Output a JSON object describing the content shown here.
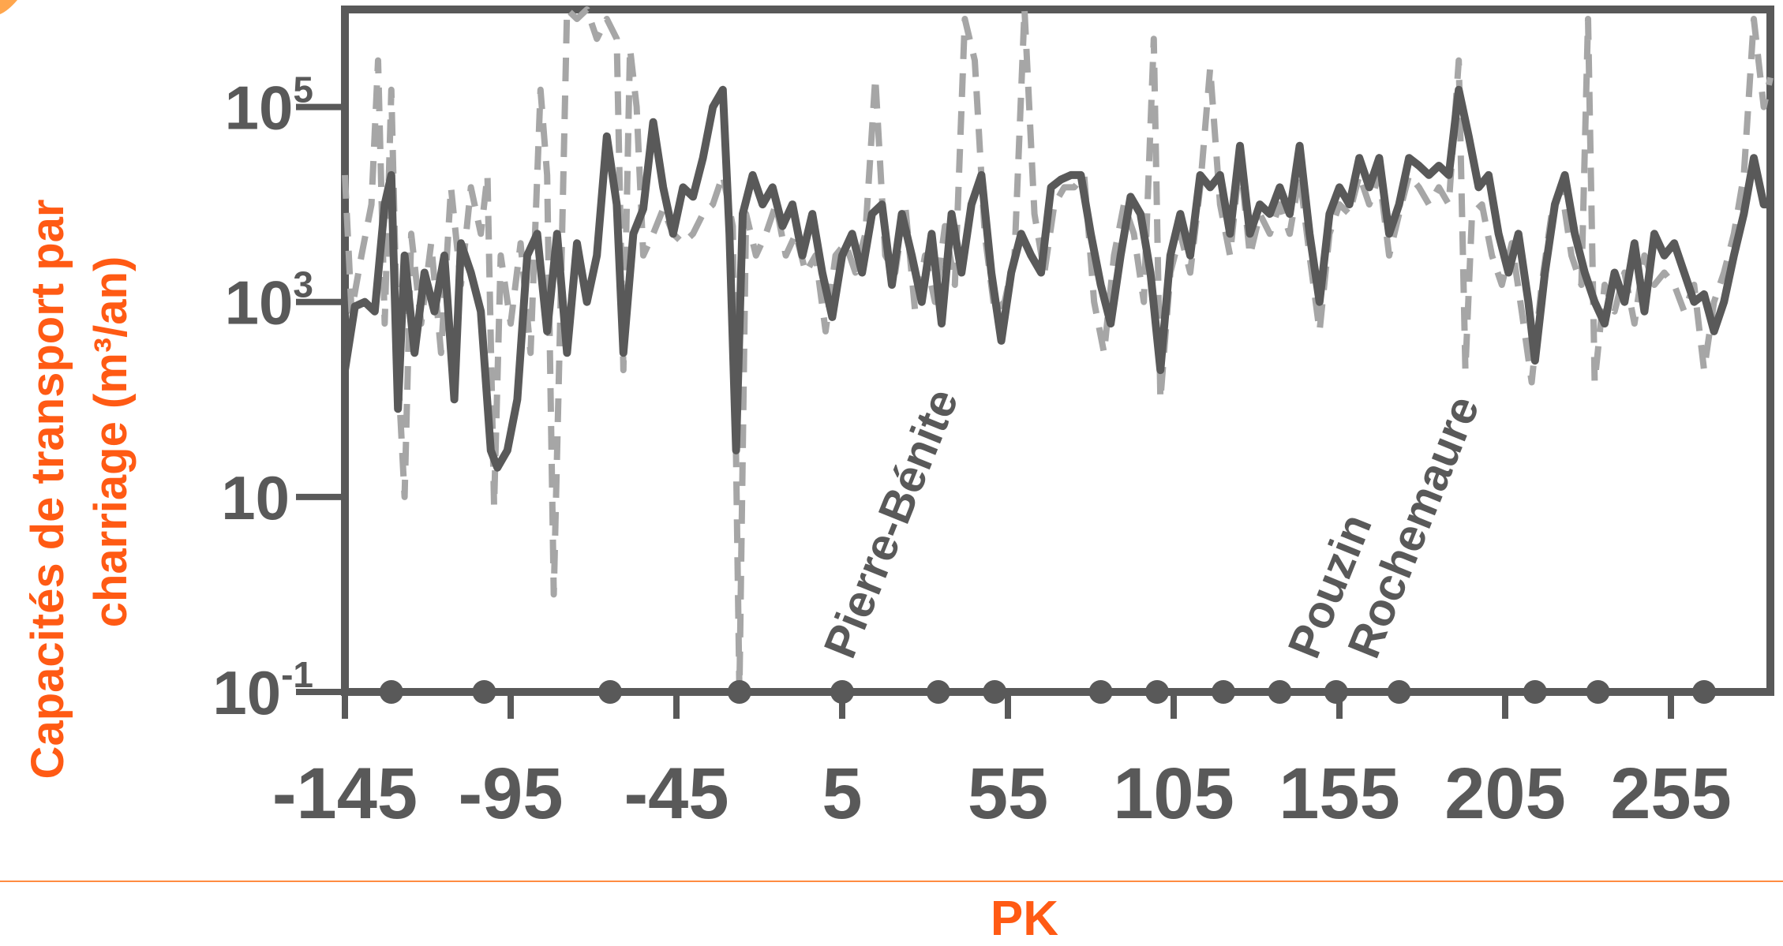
{
  "colors": {
    "axis": "#595959",
    "solid_series": "#595959",
    "dashed_series": "#a6a6a6",
    "label_accent": "#ff5a14",
    "marker": "#595959"
  },
  "chart_data": {
    "type": "line",
    "title": "",
    "xlabel": "PK",
    "ylabel_line1": "Capacités de transport par",
    "ylabel_line2": "charriage (m³/an)",
    "y_scale": "log",
    "ylim": [
      0.1,
      1000000
    ],
    "xlim": [
      -145,
      285
    ],
    "grid": false,
    "x_ticks": [
      {
        "value": -145,
        "label": "-145"
      },
      {
        "value": -95,
        "label": "-95"
      },
      {
        "value": -45,
        "label": "-45"
      },
      {
        "value": 5,
        "label": "5"
      },
      {
        "value": 55,
        "label": "55"
      },
      {
        "value": 105,
        "label": "105"
      },
      {
        "value": 155,
        "label": "155"
      },
      {
        "value": 205,
        "label": "205"
      },
      {
        "value": 255,
        "label": "255"
      }
    ],
    "y_ticks": [
      {
        "value": 0.1,
        "base": "10",
        "exp": "-1"
      },
      {
        "value": 10,
        "base": "10",
        "exp": ""
      },
      {
        "value": 1000,
        "base": "10",
        "exp": "3"
      },
      {
        "value": 100000,
        "base": "10",
        "exp": "5"
      }
    ],
    "annotations": [
      {
        "text": "Pierre-Bénite",
        "x": 8,
        "y": 0.3
      },
      {
        "text": "Pouzin",
        "x": 148,
        "y": 0.3
      },
      {
        "text": "Rochemaure",
        "x": 166,
        "y": 0.3
      }
    ],
    "markers_y": 0.1,
    "markers_x": [
      -131,
      -103,
      -65,
      -26,
      5,
      34,
      51,
      83,
      100,
      120,
      137,
      154,
      173,
      214,
      233,
      265
    ],
    "series": [
      {
        "style": "solid",
        "points": [
          [
            -145,
            200
          ],
          [
            -142,
            900
          ],
          [
            -139,
            1000
          ],
          [
            -136,
            800
          ],
          [
            -133,
            10000
          ],
          [
            -131,
            20000
          ],
          [
            -129,
            80
          ],
          [
            -127,
            3000
          ],
          [
            -124,
            300
          ],
          [
            -121,
            2000
          ],
          [
            -118,
            800
          ],
          [
            -115,
            3000
          ],
          [
            -112,
            100
          ],
          [
            -110,
            4000
          ],
          [
            -107,
            2000
          ],
          [
            -104,
            800
          ],
          [
            -101,
            30
          ],
          [
            -99,
            20
          ],
          [
            -96,
            30
          ],
          [
            -93,
            100
          ],
          [
            -90,
            3000
          ],
          [
            -87,
            5000
          ],
          [
            -84,
            500
          ],
          [
            -81,
            5000
          ],
          [
            -78,
            300
          ],
          [
            -75,
            4000
          ],
          [
            -72,
            1000
          ],
          [
            -69,
            3000
          ],
          [
            -66,
            50000
          ],
          [
            -63,
            10000
          ],
          [
            -61,
            300
          ],
          [
            -58,
            5000
          ],
          [
            -55,
            9000
          ],
          [
            -52,
            70000
          ],
          [
            -49,
            15000
          ],
          [
            -46,
            5000
          ],
          [
            -43,
            15000
          ],
          [
            -40,
            12000
          ],
          [
            -37,
            30000
          ],
          [
            -34,
            100000
          ],
          [
            -31,
            150000
          ],
          [
            -29,
            5000
          ],
          [
            -27,
            30
          ],
          [
            -25,
            8000
          ],
          [
            -22,
            20000
          ],
          [
            -19,
            10000
          ],
          [
            -16,
            15000
          ],
          [
            -13,
            6000
          ],
          [
            -10,
            10000
          ],
          [
            -7,
            3000
          ],
          [
            -4,
            8000
          ],
          [
            -1,
            2000
          ],
          [
            2,
            700
          ],
          [
            5,
            3000
          ],
          [
            8,
            5000
          ],
          [
            11,
            2000
          ],
          [
            14,
            8000
          ],
          [
            17,
            10000
          ],
          [
            20,
            1500
          ],
          [
            23,
            8000
          ],
          [
            26,
            3000
          ],
          [
            29,
            1000
          ],
          [
            32,
            5000
          ],
          [
            35,
            600
          ],
          [
            38,
            8000
          ],
          [
            41,
            2000
          ],
          [
            44,
            10000
          ],
          [
            47,
            20000
          ],
          [
            50,
            2000
          ],
          [
            53,
            400
          ],
          [
            56,
            2000
          ],
          [
            59,
            5000
          ],
          [
            62,
            3000
          ],
          [
            65,
            2000
          ],
          [
            68,
            15000
          ],
          [
            71,
            18000
          ],
          [
            74,
            20000
          ],
          [
            77,
            20000
          ],
          [
            80,
            5000
          ],
          [
            83,
            1500
          ],
          [
            86,
            600
          ],
          [
            89,
            3000
          ],
          [
            92,
            12000
          ],
          [
            95,
            8000
          ],
          [
            98,
            2000
          ],
          [
            101,
            200
          ],
          [
            104,
            3000
          ],
          [
            107,
            8000
          ],
          [
            110,
            3000
          ],
          [
            113,
            20000
          ],
          [
            116,
            15000
          ],
          [
            119,
            20000
          ],
          [
            122,
            5000
          ],
          [
            125,
            40000
          ],
          [
            128,
            5000
          ],
          [
            131,
            10000
          ],
          [
            134,
            8000
          ],
          [
            137,
            15000
          ],
          [
            140,
            8000
          ],
          [
            143,
            40000
          ],
          [
            146,
            5000
          ],
          [
            149,
            1000
          ],
          [
            152,
            8000
          ],
          [
            155,
            15000
          ],
          [
            158,
            10000
          ],
          [
            161,
            30000
          ],
          [
            164,
            15000
          ],
          [
            167,
            30000
          ],
          [
            170,
            5000
          ],
          [
            173,
            10000
          ],
          [
            176,
            30000
          ],
          [
            179,
            25000
          ],
          [
            182,
            20000
          ],
          [
            185,
            25000
          ],
          [
            188,
            20000
          ],
          [
            191,
            150000
          ],
          [
            194,
            50000
          ],
          [
            197,
            15000
          ],
          [
            200,
            20000
          ],
          [
            203,
            5000
          ],
          [
            206,
            2000
          ],
          [
            209,
            5000
          ],
          [
            212,
            1000
          ],
          [
            214,
            250
          ],
          [
            217,
            2000
          ],
          [
            220,
            10000
          ],
          [
            223,
            20000
          ],
          [
            226,
            5000
          ],
          [
            229,
            2000
          ],
          [
            232,
            1000
          ],
          [
            235,
            600
          ],
          [
            238,
            2000
          ],
          [
            241,
            1000
          ],
          [
            244,
            4000
          ],
          [
            247,
            800
          ],
          [
            250,
            5000
          ],
          [
            253,
            3000
          ],
          [
            256,
            4000
          ],
          [
            259,
            2000
          ],
          [
            262,
            1000
          ],
          [
            265,
            1200
          ],
          [
            268,
            500
          ],
          [
            271,
            1000
          ],
          [
            274,
            3000
          ],
          [
            277,
            8000
          ],
          [
            280,
            30000
          ],
          [
            283,
            10000
          ],
          [
            285,
            10000
          ]
        ]
      },
      {
        "style": "dashed",
        "points": [
          [
            -145,
            20000
          ],
          [
            -143,
            800
          ],
          [
            -140,
            3000
          ],
          [
            -137,
            10000
          ],
          [
            -135,
            300000
          ],
          [
            -133,
            600
          ],
          [
            -131,
            150000
          ],
          [
            -129,
            200
          ],
          [
            -127,
            10
          ],
          [
            -125,
            5000
          ],
          [
            -122,
            600
          ],
          [
            -119,
            4000
          ],
          [
            -116,
            300
          ],
          [
            -113,
            15000
          ],
          [
            -110,
            1500
          ],
          [
            -107,
            15000
          ],
          [
            -104,
            5000
          ],
          [
            -102,
            20000
          ],
          [
            -100,
            8
          ],
          [
            -98,
            3000
          ],
          [
            -95,
            600
          ],
          [
            -92,
            4000
          ],
          [
            -89,
            300
          ],
          [
            -86,
            150000
          ],
          [
            -84,
            20000
          ],
          [
            -82,
            1
          ],
          [
            -80,
            800
          ],
          [
            -78,
            1000000
          ],
          [
            -75,
            800000
          ],
          [
            -72,
            1000000
          ],
          [
            -69,
            500000
          ],
          [
            -66,
            800000
          ],
          [
            -63,
            500000
          ],
          [
            -61,
            200
          ],
          [
            -59,
            400000
          ],
          [
            -57,
            100000
          ],
          [
            -55,
            3000
          ],
          [
            -52,
            5000
          ],
          [
            -49,
            9000
          ],
          [
            -46,
            5000
          ],
          [
            -43,
            4000
          ],
          [
            -40,
            5000
          ],
          [
            -37,
            8000
          ],
          [
            -34,
            10000
          ],
          [
            -31,
            20000
          ],
          [
            -28,
            6000
          ],
          [
            -26,
            0.1
          ],
          [
            -24,
            8000
          ],
          [
            -21,
            3000
          ],
          [
            -18,
            5000
          ],
          [
            -15,
            10000
          ],
          [
            -12,
            3000
          ],
          [
            -9,
            5000
          ],
          [
            -6,
            2000
          ],
          [
            -3,
            3000
          ],
          [
            0,
            500
          ],
          [
            3,
            3000
          ],
          [
            6,
            4000
          ],
          [
            9,
            2000
          ],
          [
            12,
            5000
          ],
          [
            15,
            200000
          ],
          [
            18,
            3000
          ],
          [
            21,
            2000
          ],
          [
            24,
            10000
          ],
          [
            27,
            800
          ],
          [
            30,
            3000
          ],
          [
            33,
            1000
          ],
          [
            36,
            6000
          ],
          [
            39,
            1500
          ],
          [
            42,
            800000
          ],
          [
            45,
            300000
          ],
          [
            48,
            5000
          ],
          [
            51,
            800
          ],
          [
            54,
            1000
          ],
          [
            57,
            3000
          ],
          [
            60,
            1000000
          ],
          [
            63,
            8000
          ],
          [
            66,
            2000
          ],
          [
            69,
            10000
          ],
          [
            72,
            15000
          ],
          [
            75,
            15000
          ],
          [
            78,
            20000
          ],
          [
            81,
            1000
          ],
          [
            84,
            300
          ],
          [
            87,
            3000
          ],
          [
            90,
            10000
          ],
          [
            93,
            5000
          ],
          [
            96,
            1000
          ],
          [
            99,
            500000
          ],
          [
            101,
            100
          ],
          [
            104,
            2000
          ],
          [
            107,
            5000
          ],
          [
            110,
            2000
          ],
          [
            113,
            15000
          ],
          [
            116,
            250000
          ],
          [
            119,
            10000
          ],
          [
            122,
            3000
          ],
          [
            125,
            30000
          ],
          [
            128,
            3000
          ],
          [
            131,
            8000
          ],
          [
            134,
            5000
          ],
          [
            137,
            10000
          ],
          [
            140,
            5000
          ],
          [
            143,
            20000
          ],
          [
            146,
            3000
          ],
          [
            149,
            500
          ],
          [
            152,
            5000
          ],
          [
            155,
            10000
          ],
          [
            158,
            8000
          ],
          [
            161,
            20000
          ],
          [
            164,
            10000
          ],
          [
            167,
            20000
          ],
          [
            170,
            3000
          ],
          [
            173,
            8000
          ],
          [
            176,
            20000
          ],
          [
            179,
            15000
          ],
          [
            182,
            10000
          ],
          [
            185,
            15000
          ],
          [
            188,
            10000
          ],
          [
            191,
            300000
          ],
          [
            193,
            200
          ],
          [
            195,
            8000
          ],
          [
            198,
            10000
          ],
          [
            201,
            3000
          ],
          [
            204,
            1500
          ],
          [
            207,
            4000
          ],
          [
            210,
            800
          ],
          [
            213,
            150
          ],
          [
            216,
            1500
          ],
          [
            219,
            8000
          ],
          [
            222,
            15000
          ],
          [
            225,
            3000
          ],
          [
            228,
            1500
          ],
          [
            230,
            800000
          ],
          [
            232,
            150
          ],
          [
            235,
            1500
          ],
          [
            238,
            800
          ],
          [
            241,
            2000
          ],
          [
            244,
            600
          ],
          [
            247,
            3000
          ],
          [
            250,
            1500
          ],
          [
            253,
            2000
          ],
          [
            256,
            1500
          ],
          [
            259,
            800
          ],
          [
            262,
            1500
          ],
          [
            265,
            200
          ],
          [
            268,
            1000
          ],
          [
            271,
            2000
          ],
          [
            274,
            5000
          ],
          [
            277,
            20000
          ],
          [
            280,
            800000
          ],
          [
            283,
            100000
          ],
          [
            285,
            200000
          ]
        ]
      }
    ]
  }
}
